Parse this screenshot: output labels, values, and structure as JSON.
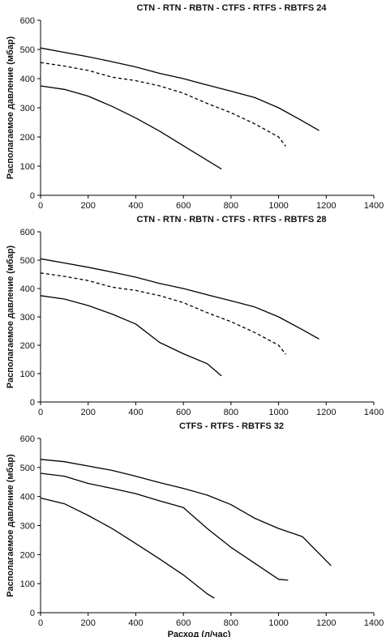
{
  "chart_data": [
    {
      "type": "line",
      "title": "CTN - RTN - RBTN - CTFS - RTFS - RBTFS 24",
      "xlabel": "",
      "ylabel": "Располагаемое давление (мбар)",
      "xlim": [
        0,
        1400
      ],
      "ylim": [
        0,
        600
      ],
      "xticks": [
        "0",
        "200",
        "400",
        "600",
        "800",
        "1000",
        "1200",
        "1400"
      ],
      "yticks": [
        "0",
        "100",
        "200",
        "300",
        "400",
        "500",
        "600"
      ],
      "grid": false,
      "series": [
        {
          "style": "solid",
          "points": [
            [
              0,
              505
            ],
            [
              100,
              490
            ],
            [
              200,
              475
            ],
            [
              300,
              458
            ],
            [
              400,
              440
            ],
            [
              500,
              418
            ],
            [
              600,
              400
            ],
            [
              700,
              378
            ],
            [
              800,
              357
            ],
            [
              900,
              335
            ],
            [
              1000,
              300
            ],
            [
              1100,
              255
            ],
            [
              1170,
              222
            ]
          ]
        },
        {
          "style": "dashed",
          "points": [
            [
              0,
              455
            ],
            [
              100,
              443
            ],
            [
              200,
              428
            ],
            [
              300,
              405
            ],
            [
              400,
              393
            ],
            [
              500,
              375
            ],
            [
              600,
              350
            ],
            [
              700,
              315
            ],
            [
              800,
              283
            ],
            [
              900,
              245
            ],
            [
              1000,
              200
            ],
            [
              1030,
              168
            ]
          ]
        },
        {
          "style": "solid",
          "points": [
            [
              0,
              375
            ],
            [
              100,
              363
            ],
            [
              200,
              340
            ],
            [
              300,
              305
            ],
            [
              400,
              265
            ],
            [
              500,
              220
            ],
            [
              600,
              170
            ],
            [
              700,
              120
            ],
            [
              760,
              90
            ]
          ]
        }
      ]
    },
    {
      "type": "line",
      "title": "CTN - RTN - RBTN - CTFS - RTFS - RBTFS 28",
      "xlabel": "",
      "ylabel": "Располагаемое давление (мбар)",
      "xlim": [
        0,
        1400
      ],
      "ylim": [
        0,
        600
      ],
      "xticks": [
        "0",
        "200",
        "400",
        "600",
        "800",
        "1000",
        "1200",
        "1400"
      ],
      "yticks": [
        "0",
        "100",
        "200",
        "300",
        "400",
        "500",
        "600"
      ],
      "grid": false,
      "series": [
        {
          "style": "solid",
          "points": [
            [
              0,
              505
            ],
            [
              100,
              490
            ],
            [
              200,
              475
            ],
            [
              300,
              458
            ],
            [
              400,
              440
            ],
            [
              500,
              418
            ],
            [
              600,
              400
            ],
            [
              700,
              378
            ],
            [
              800,
              357
            ],
            [
              900,
              335
            ],
            [
              1000,
              300
            ],
            [
              1100,
              255
            ],
            [
              1170,
              222
            ]
          ]
        },
        {
          "style": "dashed",
          "points": [
            [
              0,
              455
            ],
            [
              100,
              443
            ],
            [
              200,
              428
            ],
            [
              300,
              405
            ],
            [
              400,
              393
            ],
            [
              500,
              375
            ],
            [
              600,
              350
            ],
            [
              700,
              315
            ],
            [
              800,
              283
            ],
            [
              900,
              245
            ],
            [
              1000,
              200
            ],
            [
              1030,
              168
            ]
          ]
        },
        {
          "style": "solid",
          "points": [
            [
              0,
              375
            ],
            [
              100,
              363
            ],
            [
              200,
              340
            ],
            [
              300,
              310
            ],
            [
              400,
              275
            ],
            [
              500,
              210
            ],
            [
              600,
              170
            ],
            [
              700,
              135
            ],
            [
              760,
              92
            ]
          ]
        }
      ]
    },
    {
      "type": "line",
      "title": "CTFS - RTFS - RBTFS 32",
      "xlabel": "Расход (л/час)",
      "ylabel": "Располагаемое давление (мбар)",
      "xlim": [
        0,
        1400
      ],
      "ylim": [
        0,
        600
      ],
      "xticks": [
        "0",
        "200",
        "400",
        "600",
        "800",
        "1000",
        "1200",
        "1400"
      ],
      "yticks": [
        "0",
        "100",
        "200",
        "300",
        "400",
        "500",
        "600"
      ],
      "grid": false,
      "series": [
        {
          "style": "solid",
          "points": [
            [
              0,
              528
            ],
            [
              100,
              520
            ],
            [
              200,
              505
            ],
            [
              300,
              490
            ],
            [
              400,
              470
            ],
            [
              500,
              448
            ],
            [
              600,
              428
            ],
            [
              700,
              405
            ],
            [
              800,
              372
            ],
            [
              900,
              325
            ],
            [
              1000,
              290
            ],
            [
              1100,
              262
            ],
            [
              1220,
              162
            ]
          ]
        },
        {
          "style": "solid",
          "points": [
            [
              0,
              480
            ],
            [
              100,
              470
            ],
            [
              200,
              445
            ],
            [
              300,
              428
            ],
            [
              400,
              410
            ],
            [
              500,
              385
            ],
            [
              600,
              362
            ],
            [
              700,
              290
            ],
            [
              800,
              225
            ],
            [
              900,
              170
            ],
            [
              1000,
              115
            ],
            [
              1040,
              112
            ]
          ]
        },
        {
          "style": "solid",
          "points": [
            [
              0,
              395
            ],
            [
              100,
              375
            ],
            [
              200,
              335
            ],
            [
              300,
              290
            ],
            [
              400,
              238
            ],
            [
              500,
              185
            ],
            [
              600,
              130
            ],
            [
              700,
              65
            ],
            [
              730,
              50
            ]
          ]
        }
      ]
    }
  ]
}
